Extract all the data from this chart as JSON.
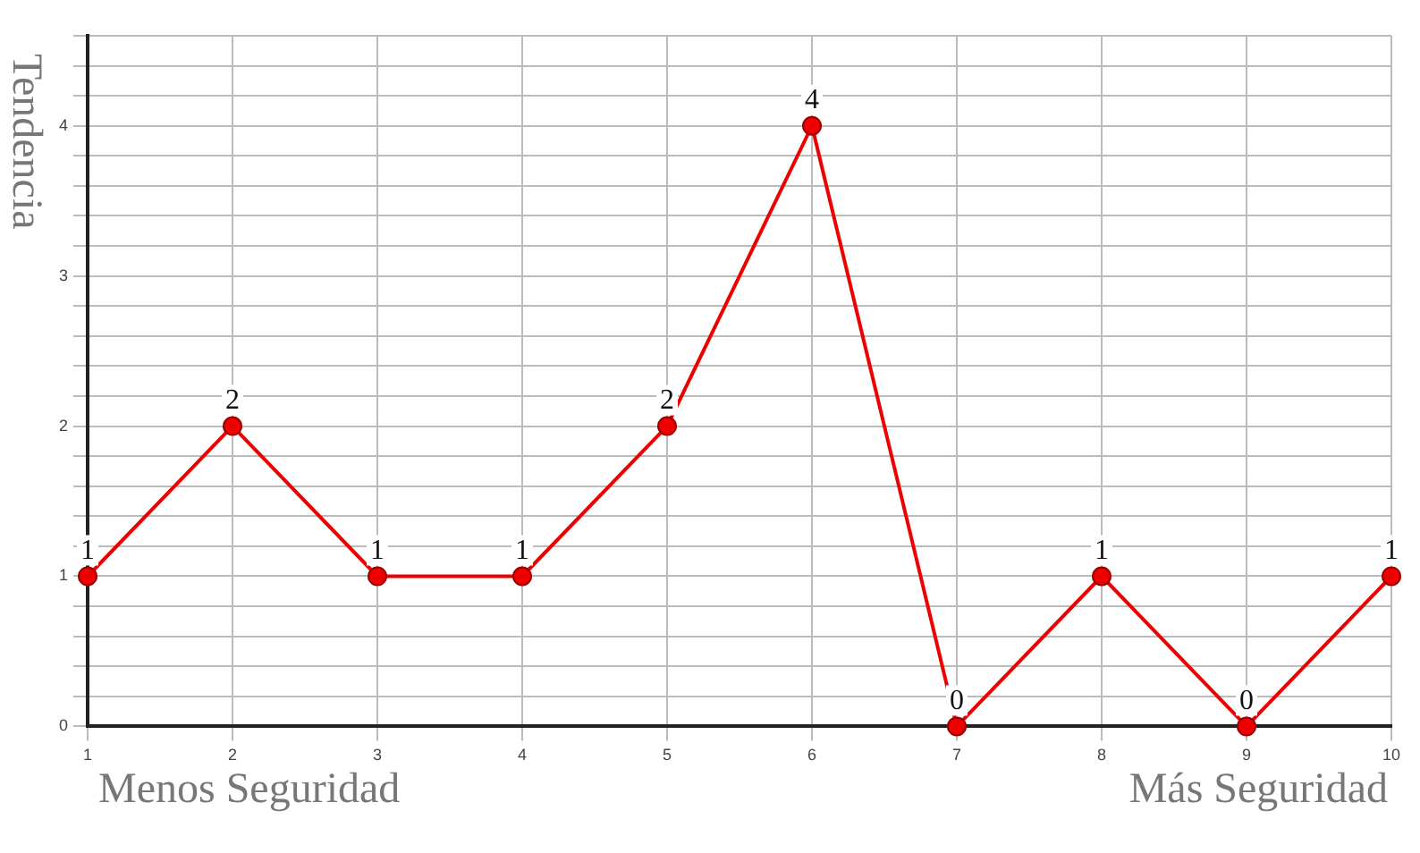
{
  "chart_data": {
    "type": "line",
    "ylabel": "Tendencia",
    "annotations": [
      "Menos Seguridad",
      "Más Seguridad"
    ],
    "x": [
      1,
      2,
      3,
      4,
      5,
      6,
      7,
      8,
      9,
      10
    ],
    "series": [
      {
        "color": "#ee0000",
        "values": [
          1,
          2,
          1,
          1,
          2,
          4,
          0,
          1,
          0,
          1
        ]
      }
    ],
    "xlim": [
      1,
      10
    ],
    "xticks": [
      1,
      2,
      3,
      4,
      5,
      6,
      7,
      8,
      9,
      10
    ],
    "ylim": [
      0,
      4.6
    ],
    "yticks": [
      0,
      {
        "value": 0.2,
        "label": null
      },
      {
        "value": 0.4,
        "label": null
      },
      {
        "value": 0.6,
        "label": null
      },
      {
        "value": 0.8,
        "label": null
      },
      1,
      {
        "value": 1.2,
        "label": null
      },
      {
        "value": 1.4,
        "label": null
      },
      {
        "value": 1.6,
        "label": null
      },
      {
        "value": 1.8,
        "label": null
      },
      2,
      {
        "value": 2.2,
        "label": null
      },
      {
        "value": 2.4,
        "label": null
      },
      {
        "value": 2.6,
        "label": null
      },
      {
        "value": 2.8,
        "label": null
      },
      3,
      {
        "value": 3.2,
        "label": null
      },
      {
        "value": 3.4,
        "label": null
      },
      {
        "value": 3.6,
        "label": null
      },
      {
        "value": 3.8,
        "label": null
      },
      4,
      {
        "value": 4.2,
        "label": null
      },
      {
        "value": 4.4,
        "label": null
      },
      {
        "value": 4.6,
        "label": null
      }
    ],
    "grid": true,
    "legend": false,
    "marker": "circle",
    "line_style": "solid",
    "data_labels": true
  }
}
